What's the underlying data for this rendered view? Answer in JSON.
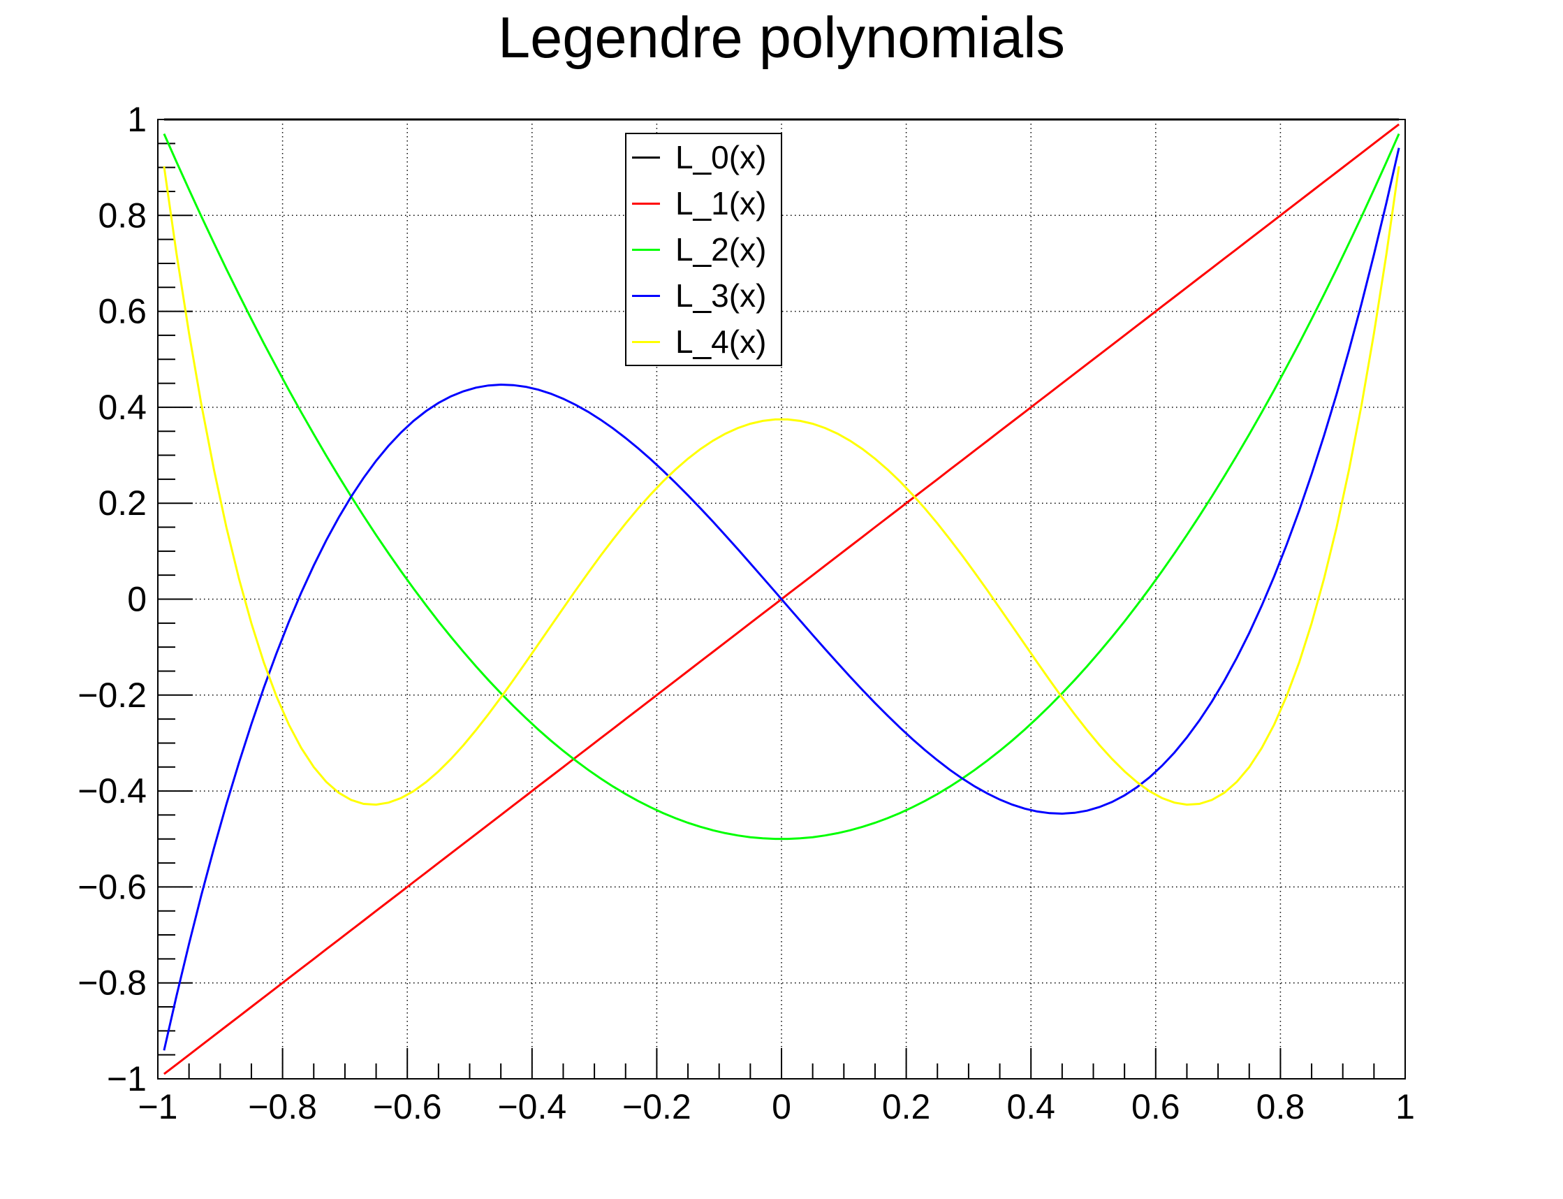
{
  "title": "Legendre polynomials",
  "chart_data": {
    "type": "line",
    "title": "Legendre polynomials",
    "xlabel": "",
    "ylabel": "",
    "xlim": [
      -1,
      1
    ],
    "ylim": [
      -1,
      1
    ],
    "grid": true,
    "grid_style": "dotted",
    "grid_color": "#000000",
    "background_color": "#ffffff",
    "frame_color": "#000000",
    "legend_position": "top-center",
    "x_major_ticks": [
      -1,
      -0.8,
      -0.6,
      -0.4,
      -0.2,
      0,
      0.2,
      0.4,
      0.6,
      0.8,
      1
    ],
    "x_tick_labels": [
      "−1",
      "−0.8",
      "−0.6",
      "−0.4",
      "−0.2",
      "0",
      "0.2",
      "0.4",
      "0.6",
      "0.8",
      "1"
    ],
    "y_major_ticks": [
      -1,
      -0.8,
      -0.6,
      -0.4,
      -0.2,
      0,
      0.2,
      0.4,
      0.6,
      0.8,
      1
    ],
    "y_tick_labels": [
      "−1",
      "−0.8",
      "−0.6",
      "−0.4",
      "−0.2",
      "0",
      "0.2",
      "0.4",
      "0.6",
      "0.8",
      "1"
    ],
    "minor_tick_step": 0.05,
    "x_sample_start": -0.99,
    "x_sample_end": 0.99,
    "samples_per_series": 100,
    "series": [
      {
        "name": "L_0(x)",
        "color": "#000000",
        "poly_coeffs": [
          1
        ]
      },
      {
        "name": "L_1(x)",
        "color": "#ff0000",
        "poly_coeffs": [
          0,
          1
        ]
      },
      {
        "name": "L_2(x)",
        "color": "#00ff00",
        "poly_coeffs": [
          -0.5,
          0,
          1.5
        ]
      },
      {
        "name": "L_3(x)",
        "color": "#0000ff",
        "poly_coeffs": [
          0,
          -1.5,
          0,
          2.5
        ]
      },
      {
        "name": "L_4(x)",
        "color": "#ffff00",
        "poly_coeffs": [
          0.375,
          0,
          -3.75,
          0,
          4.375
        ]
      }
    ]
  }
}
